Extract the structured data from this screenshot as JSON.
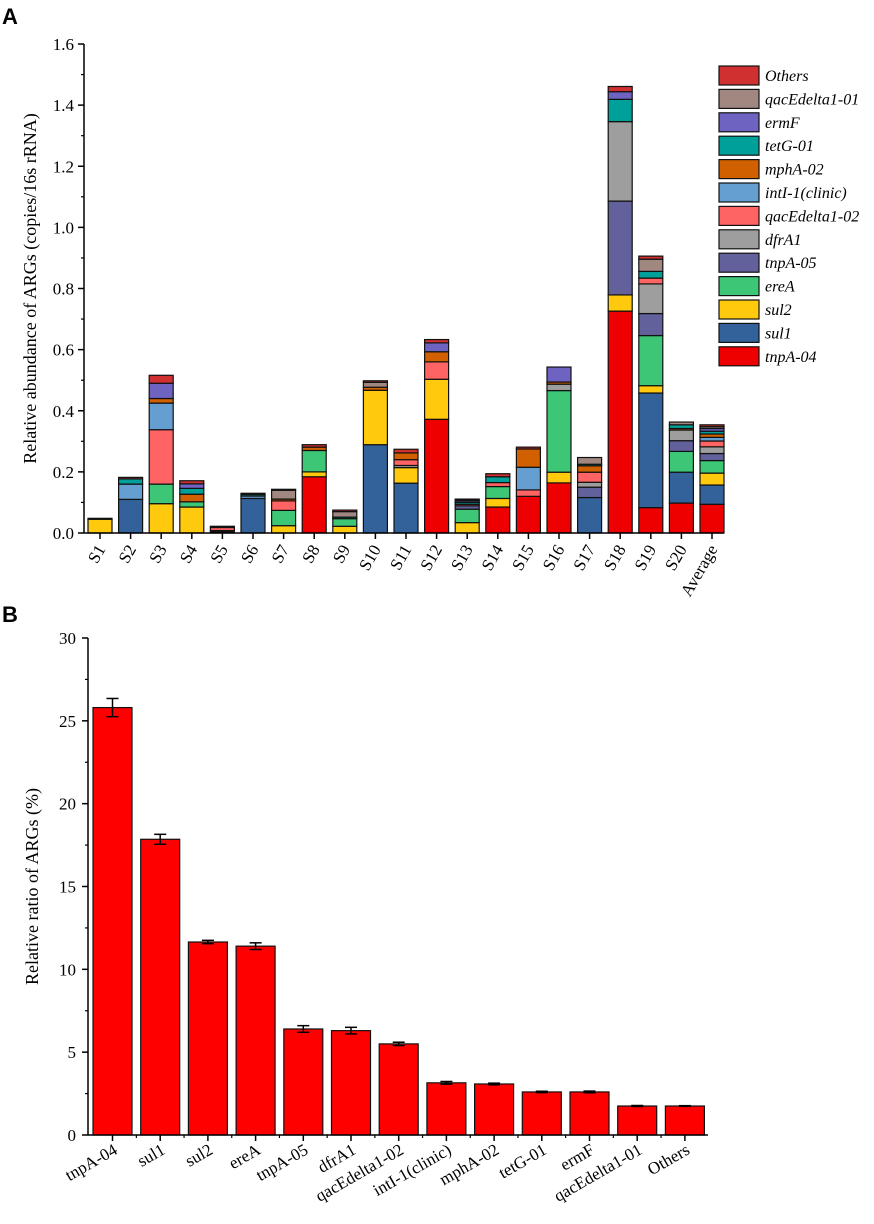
{
  "panels": {
    "a": "A",
    "b": "B"
  },
  "chart_data": [
    {
      "type": "bar",
      "stacked": true,
      "title": "",
      "xlabel": "",
      "ylabel": "Relative abundance  of ARGs (copies/16s rRNA)",
      "ylim": [
        0,
        1.6
      ],
      "yticks": [
        "0.0",
        "0.2",
        "0.4",
        "0.6",
        "0.8",
        "1.0",
        "1.2",
        "1.4",
        "1.6"
      ],
      "legend_position": "top-right",
      "categories": [
        "S1",
        "S2",
        "S3",
        "S4",
        "S5",
        "S6",
        "S7",
        "S8",
        "S9",
        "S10",
        "S11",
        "S12",
        "S13",
        "S14",
        "S15",
        "S16",
        "S17",
        "S18",
        "S19",
        "S20",
        "Average"
      ],
      "series": [
        {
          "name": "tnpA-04",
          "color": "#ee0000",
          "values": [
            0,
            0,
            0,
            0,
            0.004,
            0,
            0,
            0.184,
            0,
            0,
            0,
            0.372,
            0,
            0.085,
            0.12,
            0.164,
            0,
            0.726,
            0.083,
            0.098,
            0.094
          ]
        },
        {
          "name": "sul1",
          "color": "#33629a",
          "values": [
            0,
            0.11,
            0,
            0,
            0,
            0.113,
            0,
            0,
            0,
            0.289,
            0.163,
            0,
            0,
            0,
            0,
            0,
            0.116,
            0,
            0.375,
            0.101,
            0.063
          ]
        },
        {
          "name": "sul2",
          "color": "#ffc90e",
          "values": [
            0.045,
            0,
            0.096,
            0.085,
            0,
            0,
            0.024,
            0.016,
            0.022,
            0.178,
            0.051,
            0.131,
            0.034,
            0.028,
            0,
            0.035,
            0,
            0.053,
            0.024,
            0,
            0.039
          ]
        },
        {
          "name": "ereA",
          "color": "#3cc675",
          "values": [
            0,
            0,
            0.064,
            0.017,
            0,
            0,
            0.05,
            0.07,
            0.025,
            0,
            0,
            0,
            0.044,
            0.039,
            0,
            0.267,
            0,
            0,
            0.164,
            0.068,
            0.041
          ]
        },
        {
          "name": "tnpA-05",
          "color": "#62619c",
          "values": [
            0,
            0,
            0,
            0,
            0,
            0,
            0,
            0,
            0,
            0,
            0,
            0,
            0.011,
            0,
            0,
            0,
            0.034,
            0.307,
            0.072,
            0.035,
            0.023
          ]
        },
        {
          "name": "dfrA1",
          "color": "#9e9e9e",
          "values": [
            0,
            0,
            0,
            0,
            0.004,
            0,
            0,
            0,
            0,
            0,
            0.007,
            0,
            0,
            0,
            0,
            0.021,
            0.016,
            0.26,
            0.097,
            0.035,
            0.022
          ]
        },
        {
          "name": "qacEdelta1-02",
          "color": "#ff6464",
          "values": [
            0,
            0,
            0.178,
            0,
            0.01,
            0,
            0.031,
            0,
            0,
            0,
            0.019,
            0.057,
            0.005,
            0.013,
            0.021,
            0,
            0.033,
            0,
            0.019,
            0,
            0.019
          ]
        },
        {
          "name": "intI-1(clinic)",
          "color": "#659ed0",
          "values": [
            0,
            0.05,
            0.087,
            0,
            0,
            0.008,
            0,
            0,
            0,
            0,
            0,
            0,
            0,
            0,
            0.074,
            0,
            0,
            0,
            0,
            0,
            0.012
          ]
        },
        {
          "name": "mphA-02",
          "color": "#d06000",
          "values": [
            0,
            0,
            0.015,
            0.025,
            0,
            0,
            0.006,
            0.011,
            0,
            0.01,
            0.022,
            0.033,
            0,
            0,
            0.06,
            0.007,
            0.021,
            0,
            0,
            0.005,
            0.011
          ]
        },
        {
          "name": "tetG-01",
          "color": "#00a09a",
          "values": [
            0,
            0.017,
            0,
            0.019,
            0,
            0.005,
            0,
            0,
            0.005,
            0,
            0,
            0,
            0.006,
            0.019,
            0,
            0,
            0.005,
            0.073,
            0.022,
            0.012,
            0.009
          ]
        },
        {
          "name": "ermF",
          "color": "#6e63c0",
          "values": [
            0,
            0,
            0.05,
            0.015,
            0,
            0,
            0,
            0,
            0,
            0,
            0,
            0.029,
            0.005,
            0,
            0,
            0.049,
            0,
            0.025,
            0,
            0,
            0.009
          ]
        },
        {
          "name": "qacEdelta1-01",
          "color": "#a08880",
          "values": [
            0,
            0,
            0,
            0,
            0,
            0,
            0.029,
            0,
            0.018,
            0.016,
            0,
            0,
            0.003,
            0,
            0,
            0,
            0.022,
            0,
            0.04,
            0.009,
            0.006
          ]
        },
        {
          "name": "Others",
          "color": "#d03030",
          "values": [
            0.003,
            0.005,
            0.026,
            0.01,
            0.004,
            0.004,
            0.003,
            0.008,
            0.005,
            0.005,
            0.012,
            0.011,
            0.003,
            0.01,
            0.006,
            0,
            0,
            0.017,
            0.01,
            0,
            0.006
          ]
        }
      ]
    },
    {
      "type": "bar",
      "title": "",
      "xlabel": "",
      "ylabel": "Relative ratio of ARGs (%)",
      "ylim": [
        0,
        30
      ],
      "yticks": [
        "0",
        "5",
        "10",
        "15",
        "20",
        "25",
        "30"
      ],
      "color": "#ff0000",
      "categories": [
        "tnpA-04",
        "sul1",
        "sul2",
        "ereA",
        "tnpA-05",
        "dfrA1",
        "qacEdelta1-02",
        "intI-1(clinic)",
        "mphA-02",
        "tetG-01",
        "ermF",
        "qacEdelta1-01",
        "Others"
      ],
      "values": [
        25.8,
        17.85,
        11.65,
        11.4,
        6.4,
        6.3,
        5.5,
        3.15,
        3.08,
        2.6,
        2.6,
        1.75,
        1.75
      ],
      "errors": [
        0.55,
        0.3,
        0.1,
        0.2,
        0.2,
        0.2,
        0.1,
        0.08,
        0.05,
        0.04,
        0.05,
        0.03,
        0.02
      ]
    }
  ]
}
